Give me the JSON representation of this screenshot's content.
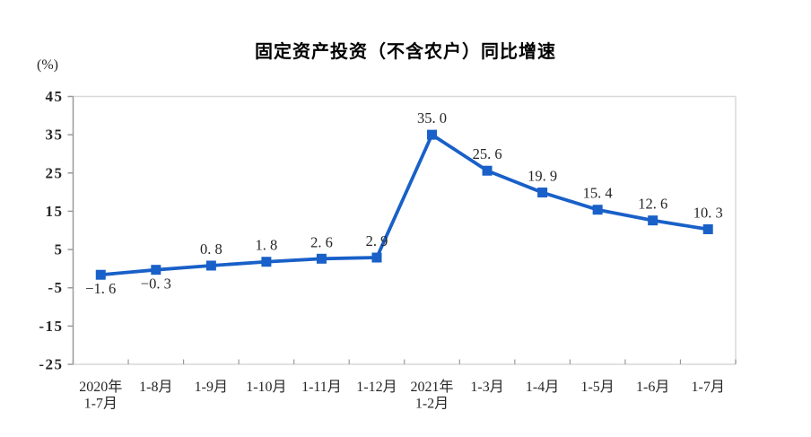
{
  "page": {
    "background": "#ffffff"
  },
  "chart_data": {
    "type": "line",
    "title": "固定资产投资（不含农户）同比增速",
    "unit_label": "(%)",
    "categories": [
      "2020年\n1-7月",
      "1-8月",
      "1-9月",
      "1-10月",
      "1-11月",
      "1-12月",
      "2021年\n1-2月",
      "1-3月",
      "1-4月",
      "1-5月",
      "1-6月",
      "1-7月"
    ],
    "values": [
      -1.6,
      -0.3,
      0.8,
      1.8,
      2.6,
      2.9,
      35.0,
      25.6,
      19.9,
      15.4,
      12.6,
      10.3
    ],
    "data_labels": [
      "−1. 6",
      "−0. 3",
      "0. 8",
      "1. 8",
      "2. 6",
      "2. 9",
      "35. 0",
      "25. 6",
      "19. 9",
      "15. 4",
      "12. 6",
      "10. 3"
    ],
    "label_below": [
      true,
      true,
      false,
      false,
      false,
      false,
      false,
      false,
      false,
      false,
      false,
      false
    ],
    "yticks": [
      45,
      35,
      25,
      15,
      5,
      -5,
      -15,
      -25
    ],
    "ylim": [
      -25,
      45
    ],
    "xlabel": "",
    "ylabel": "(%)",
    "grid": false,
    "legend": "none",
    "marker": "square",
    "line_color": "#1960c8",
    "axis_color": "#9a9a9a",
    "frame_color": "#d9d9d9",
    "text_color": "#262626",
    "title_color": "#000000"
  }
}
